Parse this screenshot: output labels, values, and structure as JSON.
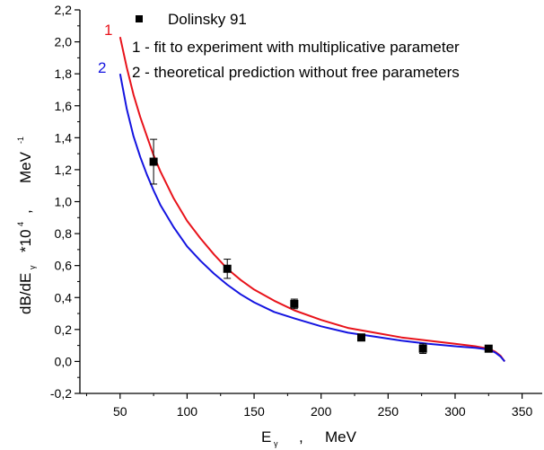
{
  "chart_data": {
    "type": "scatter",
    "xlabel": "E",
    "xlabel_sub": "γ",
    "xlabel_sep": ",",
    "xunit": "MeV",
    "ylabel": "dB/dE",
    "ylabel_sub": "γ",
    "ylabel_factor": "*10",
    "ylabel_factor_sup": "4",
    "ylabel_sep": ",",
    "yunit": "MeV",
    "yunit_sup": "-1",
    "xlim": [
      20,
      365
    ],
    "ylim": [
      -0.2,
      2.2
    ],
    "xticks": [
      "50",
      "100",
      "150",
      "200",
      "250",
      "300",
      "350"
    ],
    "yticks": [
      "-0,2",
      "0,0",
      "0,2",
      "0,4",
      "0,6",
      "0,8",
      "1,0",
      "1,2",
      "1,4",
      "1,6",
      "1,8",
      "2,0",
      "2,2"
    ],
    "legend_position": "top-right",
    "series": [
      {
        "name": "Dolinsky 91",
        "kind": "points",
        "color": "#000000",
        "x": [
          75,
          130,
          180,
          230,
          276,
          325
        ],
        "y": [
          1.25,
          0.58,
          0.36,
          0.15,
          0.08,
          0.08
        ],
        "yerr": [
          0.14,
          0.06,
          0.03,
          0.02,
          0.03,
          0.01
        ]
      },
      {
        "name": "1 - fit to experiment with multiplicative parameter",
        "label": "1",
        "kind": "line",
        "color": "#e8131b",
        "x": [
          50,
          55,
          60,
          65,
          70,
          75,
          80,
          90,
          100,
          110,
          120,
          130,
          140,
          150,
          165,
          180,
          200,
          220,
          240,
          260,
          280,
          300,
          315,
          325,
          330,
          334,
          337
        ],
        "y": [
          2.03,
          1.84,
          1.67,
          1.53,
          1.41,
          1.29,
          1.19,
          1.02,
          0.88,
          0.77,
          0.67,
          0.58,
          0.51,
          0.45,
          0.38,
          0.32,
          0.26,
          0.21,
          0.18,
          0.15,
          0.13,
          0.11,
          0.095,
          0.08,
          0.06,
          0.035,
          0.0
        ]
      },
      {
        "name": "2 - theoretical prediction without free parameters",
        "label": "2",
        "kind": "line",
        "color": "#1414e0",
        "x": [
          50,
          55,
          60,
          65,
          70,
          75,
          80,
          90,
          100,
          110,
          120,
          130,
          140,
          150,
          165,
          180,
          200,
          220,
          240,
          260,
          280,
          300,
          315,
          325,
          330,
          334,
          337
        ],
        "y": [
          1.8,
          1.58,
          1.41,
          1.28,
          1.17,
          1.07,
          0.98,
          0.84,
          0.72,
          0.63,
          0.55,
          0.48,
          0.42,
          0.37,
          0.31,
          0.27,
          0.22,
          0.18,
          0.155,
          0.13,
          0.11,
          0.095,
          0.085,
          0.075,
          0.055,
          0.03,
          0.0
        ]
      }
    ]
  }
}
